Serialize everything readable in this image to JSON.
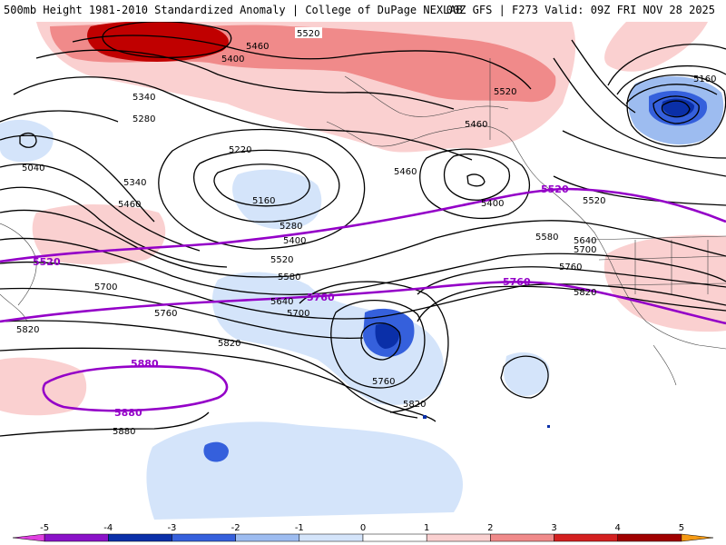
{
  "header": {
    "title_left": "500mb Height 1981-2010 Standardized Anomaly | College of DuPage NEXLAB",
    "title_right": "00Z GFS | F273 Valid: 09Z FRI NOV 28 2025"
  },
  "colors": {
    "black_contour": "#000000",
    "purple_contour": "#9400c8",
    "coast": "#444444"
  },
  "contour_labels": [
    {
      "id": "c5520a",
      "text": "5520"
    },
    {
      "id": "c5460a",
      "text": "5460"
    },
    {
      "id": "c5400a",
      "text": "5400"
    },
    {
      "id": "c5520b",
      "text": "5520"
    },
    {
      "id": "c5460b",
      "text": "5460"
    },
    {
      "id": "c5160a",
      "text": "5160"
    },
    {
      "id": "c5340a",
      "text": "5340"
    },
    {
      "id": "c5280a",
      "text": "5280"
    },
    {
      "id": "c5040a",
      "text": "5040"
    },
    {
      "id": "c5220a",
      "text": "5220"
    },
    {
      "id": "c5460c",
      "text": "5460"
    },
    {
      "id": "c5340b",
      "text": "5340"
    },
    {
      "id": "c5460d",
      "text": "5460"
    },
    {
      "id": "c5160b",
      "text": "5160"
    },
    {
      "id": "c5400b",
      "text": "5400"
    },
    {
      "id": "c5280b",
      "text": "5280"
    },
    {
      "id": "c5400c",
      "text": "5400"
    },
    {
      "id": "c5520c",
      "text": "5520"
    },
    {
      "id": "c5580a",
      "text": "5580"
    },
    {
      "id": "c5640a",
      "text": "5640"
    },
    {
      "id": "c5700a",
      "text": "5700"
    },
    {
      "id": "c5580b",
      "text": "5580"
    },
    {
      "id": "c5640b",
      "text": "5640"
    },
    {
      "id": "c5700b",
      "text": "5700"
    },
    {
      "id": "c5760a",
      "text": "5760"
    },
    {
      "id": "c5700c",
      "text": "5700"
    },
    {
      "id": "c5760b",
      "text": "5760"
    },
    {
      "id": "c5820a",
      "text": "5820"
    },
    {
      "id": "c5820b",
      "text": "5820"
    },
    {
      "id": "c5820c",
      "text": "5820"
    },
    {
      "id": "c5760c",
      "text": "5760"
    },
    {
      "id": "c5820d",
      "text": "5820"
    },
    {
      "id": "c5880a",
      "text": "5880"
    },
    {
      "id": "c5520d",
      "text": "5520"
    }
  ],
  "purple_labels": [
    {
      "id": "p5520a",
      "text": "5520"
    },
    {
      "id": "p5520b",
      "text": "5520"
    },
    {
      "id": "p5760a",
      "text": "5760"
    },
    {
      "id": "p5760b",
      "text": "5760"
    },
    {
      "id": "p5880a",
      "text": "5880"
    },
    {
      "id": "p5880b",
      "text": "5880"
    }
  ],
  "legend": {
    "ticks": [
      "-5",
      "-4",
      "-3",
      "-2",
      "-1",
      "0",
      "1",
      "2",
      "3",
      "4",
      "5"
    ],
    "bins": [
      {
        "from": -5.5,
        "to": -5,
        "color": "#e040e0"
      },
      {
        "from": -5,
        "to": -4,
        "color": "#8a12c8"
      },
      {
        "from": -4,
        "to": -3,
        "color": "#0a2fa8"
      },
      {
        "from": -3,
        "to": -2,
        "color": "#3560dc"
      },
      {
        "from": -2,
        "to": -1,
        "color": "#9dbcf0"
      },
      {
        "from": -1,
        "to": 0,
        "color": "#d4e4fa"
      },
      {
        "from": 0,
        "to": 1,
        "color": "#ffffff"
      },
      {
        "from": 1,
        "to": 2,
        "color": "#fad0d0"
      },
      {
        "from": 2,
        "to": 3,
        "color": "#f08a8a"
      },
      {
        "from": 3,
        "to": 4,
        "color": "#d42020"
      },
      {
        "from": 4,
        "to": 5,
        "color": "#a00000"
      },
      {
        "from": 5,
        "to": 5.5,
        "color": "#f59a14"
      }
    ]
  }
}
